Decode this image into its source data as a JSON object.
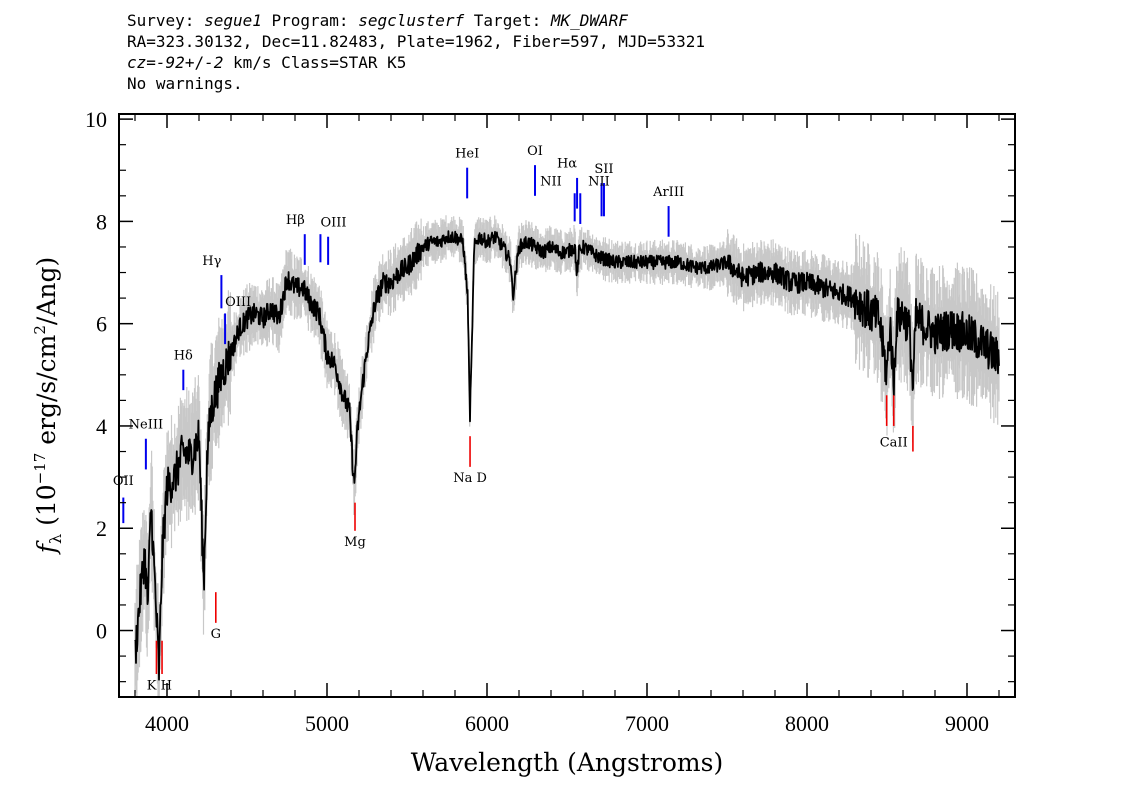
{
  "header": {
    "line1": "Survey: segue1 Program: segclusterf Target: MK_DWARF",
    "line2": "RA=323.30132, Dec=11.82483, Plate=1962, Fiber=597, MJD=53321",
    "line3": "cz=-92+/-2 km/s Class=STAR K5",
    "line4": "No warnings."
  },
  "chart_data": {
    "type": "line",
    "xlabel": "Wavelength (Angstroms)",
    "ylabel": "f_λ (10^-17 erg/s/cm^2/Ang)",
    "xlim": [
      3700,
      9300
    ],
    "ylim": [
      -1.3,
      10.1
    ],
    "x_ticks": [
      4000,
      5000,
      6000,
      7000,
      8000,
      9000
    ],
    "y_ticks": [
      0,
      2,
      4,
      6,
      8,
      10
    ],
    "series": [
      {
        "role": "flux",
        "color": "#000000",
        "x": [
          3800,
          3830,
          3860,
          3880,
          3900,
          3935,
          3950,
          3970,
          4000,
          4050,
          4100,
          4150,
          4200,
          4230,
          4250,
          4270,
          4300,
          4340,
          4380,
          4420,
          4450,
          4500,
          4550,
          4600,
          4650,
          4700,
          4750,
          4800,
          4850,
          4900,
          4950,
          5000,
          5050,
          5100,
          5140,
          5170,
          5190,
          5210,
          5250,
          5300,
          5350,
          5400,
          5450,
          5500,
          5550,
          5600,
          5650,
          5700,
          5750,
          5800,
          5850,
          5880,
          5893,
          5905,
          5920,
          5950,
          6000,
          6050,
          6100,
          6150,
          6160,
          6200,
          6250,
          6300,
          6350,
          6400,
          6450,
          6500,
          6550,
          6563,
          6575,
          6600,
          6700,
          6800,
          6900,
          7000,
          7100,
          7200,
          7300,
          7400,
          7500,
          7600,
          7700,
          7800,
          7900,
          8000,
          8100,
          8200,
          8300,
          8400,
          8450,
          8498,
          8520,
          8542,
          8560,
          8600,
          8640,
          8662,
          8680,
          8720,
          8800,
          8900,
          9000,
          9100,
          9200
        ],
        "values": [
          -0.5,
          0.6,
          1.5,
          0.5,
          2.5,
          0.2,
          -0.8,
          1.5,
          2.8,
          3.0,
          3.5,
          3.4,
          3.8,
          0.9,
          3.3,
          4.2,
          4.6,
          5.0,
          5.3,
          5.6,
          5.9,
          6.1,
          6.2,
          6.1,
          6.3,
          6.1,
          6.9,
          6.7,
          6.7,
          6.4,
          6.2,
          5.4,
          5.2,
          4.6,
          4.3,
          2.8,
          3.9,
          4.5,
          5.5,
          6.4,
          6.8,
          6.8,
          7.0,
          7.1,
          7.3,
          7.5,
          7.6,
          7.6,
          7.7,
          7.7,
          7.6,
          6.5,
          4.1,
          5.5,
          7.5,
          7.7,
          7.6,
          7.7,
          7.5,
          7.2,
          6.5,
          7.5,
          7.6,
          7.5,
          7.4,
          7.5,
          7.4,
          7.4,
          7.5,
          6.9,
          7.4,
          7.5,
          7.3,
          7.2,
          7.2,
          7.2,
          7.2,
          7.2,
          7.1,
          7.1,
          7.2,
          6.9,
          7.0,
          7.0,
          6.8,
          6.8,
          6.7,
          6.6,
          6.5,
          6.2,
          6.1,
          5.0,
          6.0,
          4.8,
          6.1,
          6.2,
          5.9,
          4.7,
          6.1,
          6.0,
          5.8,
          5.9,
          5.8,
          5.6,
          5.3
        ]
      },
      {
        "role": "error",
        "color": "#c8c8c8",
        "note": "noise envelope around flux (gray vertical band)"
      }
    ],
    "emission_lines": [
      {
        "label": "OII",
        "x": 3727,
        "y_top": 2.6,
        "y_bottom": 2.1
      },
      {
        "label": "NeIII",
        "x": 3868,
        "y_top": 3.75,
        "y_bottom": 3.15
      },
      {
        "label": "Hδ",
        "x": 4102,
        "y_top": 5.1,
        "y_bottom": 4.7
      },
      {
        "label": "Hγ",
        "x": 4340,
        "y_top": 6.95,
        "y_bottom": 6.3
      },
      {
        "label": "OIII",
        "x": 4363,
        "y_top": 6.2,
        "y_bottom": 5.6
      },
      {
        "label": "Hβ",
        "x": 4861,
        "y_top": 7.75,
        "y_bottom": 7.15
      },
      {
        "label": "OIII",
        "x": 4959,
        "y_top": 7.75,
        "y_bottom": 7.2
      },
      {
        "label": "OIII",
        "x": 5007,
        "y_top": 7.7,
        "y_bottom": 7.15
      },
      {
        "label": "HeI",
        "x": 5876,
        "y_top": 9.05,
        "y_bottom": 8.45
      },
      {
        "label": "OI",
        "x": 6300,
        "y_top": 9.1,
        "y_bottom": 8.5
      },
      {
        "label": "NII",
        "x": 6548,
        "y_top": 8.55,
        "y_bottom": 8.0
      },
      {
        "label": "Hα",
        "x": 6563,
        "y_top": 8.85,
        "y_bottom": 8.25
      },
      {
        "label": "NII",
        "x": 6583,
        "y_top": 8.55,
        "y_bottom": 7.95
      },
      {
        "label": "SII",
        "x": 6716,
        "y_top": 8.75,
        "y_bottom": 8.1
      },
      {
        "label": "SII",
        "x": 6731,
        "y_top": 8.75,
        "y_bottom": 8.1
      },
      {
        "label": "ArIII",
        "x": 7135,
        "y_top": 8.3,
        "y_bottom": 7.7
      }
    ],
    "absorption_lines": [
      {
        "label": "K",
        "x": 3934,
        "y_top": -0.2,
        "y_bottom": -0.85
      },
      {
        "label": "H",
        "x": 3969,
        "y_top": -0.2,
        "y_bottom": -0.85
      },
      {
        "label": "G",
        "x": 4305,
        "y_top": 0.75,
        "y_bottom": 0.15
      },
      {
        "label": "Mg",
        "x": 5175,
        "y_top": 2.5,
        "y_bottom": 1.95
      },
      {
        "label": "Na D",
        "x": 5894,
        "y_top": 3.8,
        "y_bottom": 3.2
      },
      {
        "label": "CaII",
        "x": 8498,
        "y_top": 4.6,
        "y_bottom": 4.0
      },
      {
        "label": "CaII",
        "x": 8542,
        "y_top": 4.6,
        "y_bottom": 4.0
      },
      {
        "label": "CaII",
        "x": 8662,
        "y_top": 4.0,
        "y_bottom": 3.5
      }
    ],
    "line_colors": {
      "emission": "#0000ee",
      "absorption": "#ee0000"
    },
    "line_label_texts": {
      "OII": "OII",
      "NeIII": "NeIII",
      "Hd": "Hδ",
      "Hg": "Hγ",
      "OIII": "OIII",
      "Hb": "Hβ",
      "HeI": "HeI",
      "OI": "OI",
      "NII": "NII",
      "Ha": "Hα",
      "SII": "SII",
      "ArIII": "ArIII",
      "KH": "K H",
      "G": "G",
      "Mg": "Mg",
      "NaD": "Na D",
      "CaII": "CaII"
    }
  }
}
